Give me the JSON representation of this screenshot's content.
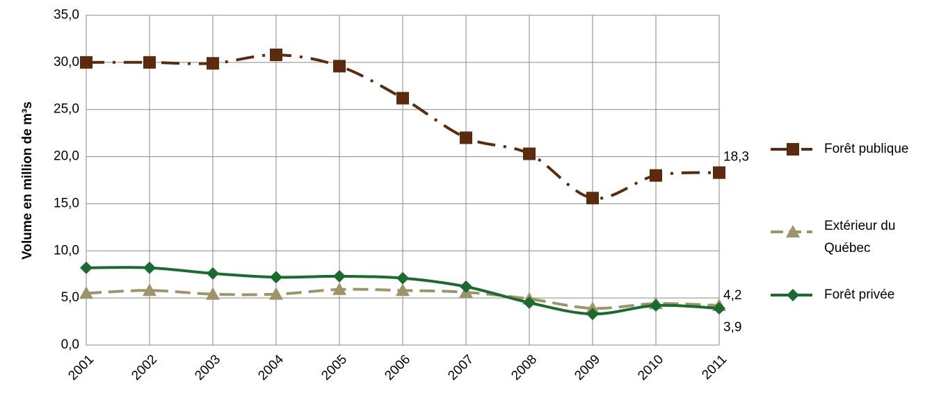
{
  "chart_data": {
    "type": "line",
    "y_label": "Volume en million de m³s",
    "categories": [
      "2001",
      "2002",
      "2003",
      "2004",
      "2005",
      "2006",
      "2007",
      "2008",
      "2009",
      "2010",
      "2011"
    ],
    "series": [
      {
        "name": "Forêt publique",
        "color": "#5c2a0c",
        "dash": "dashdot",
        "marker": "square",
        "values": [
          30.0,
          30.0,
          29.9,
          30.8,
          29.6,
          26.2,
          22.0,
          20.3,
          15.6,
          18.0,
          18.3
        ],
        "value_labels": [
          null,
          null,
          null,
          null,
          null,
          null,
          null,
          null,
          null,
          null,
          "18,3"
        ]
      },
      {
        "name": "Extérieur du Québec",
        "color": "#9e946a",
        "dash": "dashed",
        "marker": "triangle",
        "values": [
          5.5,
          5.8,
          5.4,
          5.4,
          5.9,
          5.8,
          5.6,
          4.9,
          3.9,
          4.4,
          4.2
        ],
        "value_labels": [
          null,
          null,
          null,
          null,
          null,
          null,
          null,
          null,
          null,
          null,
          "4,2"
        ]
      },
      {
        "name": "Forêt privée",
        "color": "#1a6b2e",
        "dash": "solid",
        "marker": "diamond",
        "values": [
          8.2,
          8.2,
          7.6,
          7.2,
          7.3,
          7.1,
          6.2,
          4.5,
          3.3,
          4.2,
          3.9
        ],
        "value_labels": [
          null,
          null,
          null,
          null,
          null,
          null,
          null,
          null,
          null,
          null,
          "3,9"
        ]
      }
    ],
    "ylim": [
      0,
      35
    ],
    "yticks": [
      {
        "value": 0,
        "label": "0,0"
      },
      {
        "value": 5,
        "label": "5,0"
      },
      {
        "value": 10,
        "label": "10,0"
      },
      {
        "value": 15,
        "label": "15,0"
      },
      {
        "value": 20,
        "label": "20,0"
      },
      {
        "value": 25,
        "label": "25,0"
      },
      {
        "value": 30,
        "label": "30,0"
      },
      {
        "value": 35,
        "label": "35,0"
      }
    ],
    "grid": true,
    "legend": "right"
  }
}
